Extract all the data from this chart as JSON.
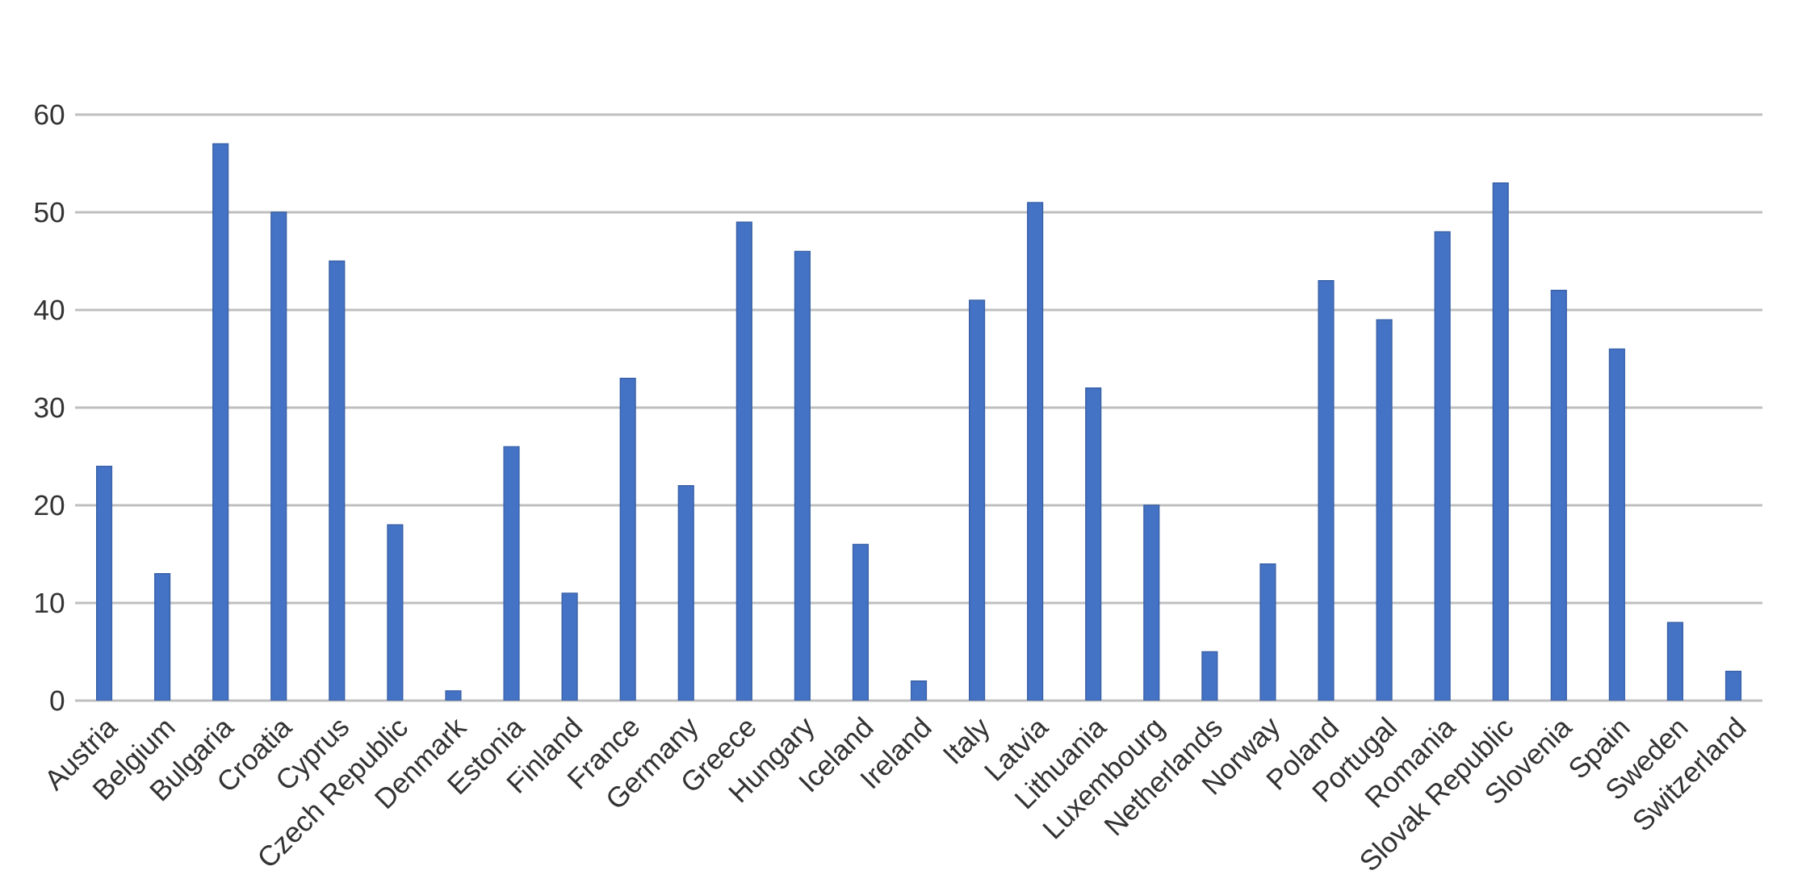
{
  "chart_data": {
    "type": "bar",
    "categories": [
      "Austria",
      "Belgium",
      "Bulgaria",
      "Croatia",
      "Cyprus",
      "Czech Republic",
      "Denmark",
      "Estonia",
      "Finland",
      "France",
      "Germany",
      "Greece",
      "Hungary",
      "Iceland",
      "Ireland",
      "Italy",
      "Latvia",
      "Lithuania",
      "Luxembourg",
      "Netherlands",
      "Norway",
      "Poland",
      "Portugal",
      "Romania",
      "Slovak Republic",
      "Slovenia",
      "Spain",
      "Sweden",
      "Switzerland"
    ],
    "values": [
      24,
      13,
      57,
      50,
      45,
      18,
      1,
      26,
      11,
      33,
      22,
      49,
      46,
      16,
      2,
      41,
      51,
      32,
      20,
      5,
      14,
      43,
      39,
      48,
      53,
      42,
      36,
      8,
      3
    ],
    "color": "#4472c4",
    "ylim": [
      0,
      60
    ],
    "yticks": [
      0,
      10,
      20,
      30,
      40,
      50,
      60
    ],
    "grid": "y"
  }
}
